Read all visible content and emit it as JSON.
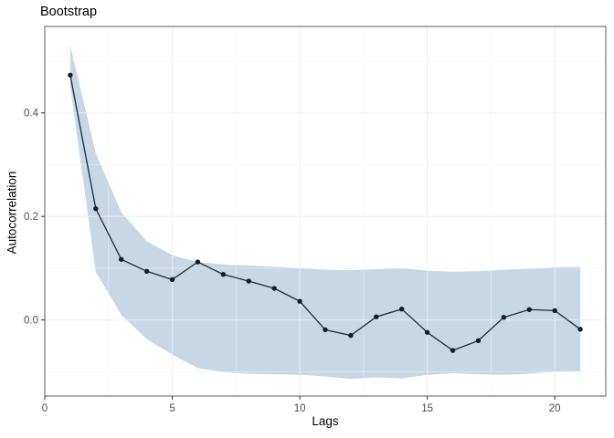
{
  "title": "Bootstrap",
  "x_axis": {
    "label": "Lags",
    "tick_values": [
      0,
      5,
      10,
      15,
      20
    ],
    "tick_labels": [
      "0",
      "5",
      "10",
      "15",
      "20"
    ],
    "minor_tick_values": [
      2.5,
      7.5,
      12.5,
      17.5
    ]
  },
  "y_axis": {
    "label": "Autocorrelation",
    "tick_values": [
      0.0,
      0.2,
      0.4
    ],
    "tick_labels": [
      "0.0",
      "0.2",
      "0.4"
    ],
    "minor_tick_values": [
      -0.1,
      0.1,
      0.3,
      0.5
    ]
  },
  "chart_data": {
    "type": "line",
    "title": "Bootstrap",
    "xlabel": "Lags",
    "ylabel": "Autocorrelation",
    "x": [
      1,
      2,
      3,
      4,
      5,
      6,
      7,
      8,
      9,
      10,
      11,
      12,
      13,
      14,
      15,
      16,
      17,
      18,
      19,
      20,
      21
    ],
    "series": [
      {
        "name": "autocorrelation",
        "role": "line-with-markers",
        "values": [
          0.473,
          0.215,
          0.117,
          0.094,
          0.078,
          0.112,
          0.088,
          0.075,
          0.061,
          0.036,
          -0.019,
          -0.03,
          0.006,
          0.021,
          -0.024,
          -0.059,
          -0.04,
          0.005,
          0.02,
          0.018,
          -0.018
        ]
      },
      {
        "name": "bootstrap-band-upper",
        "role": "ribbon-upper",
        "values": [
          0.53,
          0.322,
          0.208,
          0.152,
          0.125,
          0.112,
          0.107,
          0.105,
          0.103,
          0.1,
          0.097,
          0.096,
          0.098,
          0.1,
          0.095,
          0.093,
          0.094,
          0.097,
          0.099,
          0.102,
          0.103
        ]
      },
      {
        "name": "bootstrap-band-lower",
        "role": "ribbon-lower",
        "values": [
          0.452,
          0.093,
          0.01,
          -0.037,
          -0.067,
          -0.093,
          -0.101,
          -0.104,
          -0.105,
          -0.106,
          -0.109,
          -0.114,
          -0.111,
          -0.113,
          -0.106,
          -0.103,
          -0.105,
          -0.106,
          -0.104,
          -0.1,
          -0.099
        ]
      }
    ],
    "xlim": [
      0,
      22
    ],
    "ylim": [
      -0.147,
      0.567
    ],
    "grid": "major+minor",
    "legend_position": "none",
    "colors": {
      "ribbon_fill": "#c7d7e6",
      "line": "#1c2a3a",
      "marker": "#121e2b",
      "grid_major": "#e4e4e4",
      "grid_minor": "#f1f1f1",
      "grid_over_ribbon": "rgba(255,255,255,0.5)",
      "panel_border": "#777777",
      "panel_background": "#ffffff",
      "tick_mark": "#333333",
      "tick_text": "#4d4d4d",
      "title_text": "#000000"
    }
  }
}
